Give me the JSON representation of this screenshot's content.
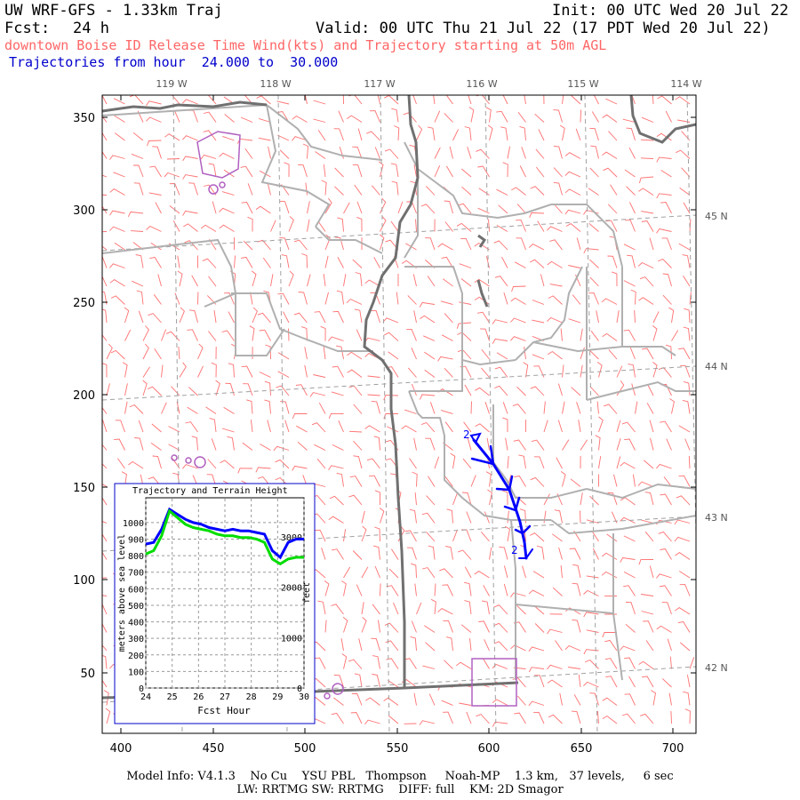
{
  "header": {
    "title": "UW WRF-GFS - 1.33km Traj",
    "init": "Init: 00 UTC Wed 20 Jul 22",
    "fcst_label": "Fcst:",
    "fcst_value": "24 h",
    "valid": "Valid: 00 UTC Thu 21 Jul 22 (17 PDT Wed 20 Jul 22)",
    "subtitle": "downtown Boise ID Release Time Wind(kts) and Trajectory starting at 50m AGL",
    "traj_hours": "Trajectories from hour  24.000 to  30.000"
  },
  "colors": {
    "title": "#000000",
    "subtitle": "#ff6666",
    "traj_hours": "#0000cc",
    "wind_barb": "#ff7070",
    "trajectory": "#0000ff",
    "terrain": "#00dd00",
    "county_border": "#b0b0b0",
    "state_border": "#707070",
    "grid": "#a0a0a0",
    "urban": "#b060c0"
  },
  "map": {
    "x_ticks": [
      "400",
      "450",
      "500",
      "550",
      "600",
      "650",
      "700"
    ],
    "y_ticks": [
      "50",
      "100",
      "150",
      "200",
      "250",
      "300",
      "350"
    ],
    "lon_labels": [
      "119 W",
      "118 W",
      "117 W",
      "116 W",
      "115 W",
      "114 W"
    ],
    "lat_labels": [
      "45 N",
      "44 N",
      "43 N",
      "42 N"
    ],
    "trajectory_markers": [
      "2",
      "2"
    ]
  },
  "inset": {
    "title": "Trajectory and Terrain Height",
    "y_left_label": "meters above sea level",
    "y_right_label": "feet",
    "x_label": "Fcst Hour",
    "y_left_ticks": [
      "0",
      "100",
      "200",
      "300",
      "400",
      "500",
      "600",
      "700",
      "800",
      "900",
      "1000"
    ],
    "y_right_ticks": [
      "0",
      "1000",
      "2000",
      "3000"
    ],
    "x_ticks": [
      "24",
      "25",
      "26",
      "27",
      "28",
      "29",
      "30"
    ],
    "chart_data": {
      "type": "line",
      "x": [
        24,
        24.3,
        24.6,
        24.9,
        25.2,
        25.5,
        25.8,
        26.1,
        26.4,
        26.7,
        27.0,
        27.3,
        27.6,
        27.9,
        28.2,
        28.5,
        28.8,
        29.1,
        29.4,
        29.7,
        30.0
      ],
      "series": [
        {
          "values": [
            870,
            880,
            960,
            1080,
            1050,
            1020,
            1000,
            990,
            970,
            960,
            950,
            960,
            950,
            950,
            940,
            930,
            830,
            790,
            880,
            900,
            900
          ]
        },
        {
          "values": [
            810,
            830,
            920,
            1070,
            1030,
            990,
            970,
            960,
            950,
            930,
            920,
            920,
            910,
            910,
            900,
            880,
            780,
            750,
            780,
            790,
            790
          ]
        }
      ],
      "xlim": [
        24,
        30
      ],
      "ylim": [
        0,
        1150
      ],
      "xlabel": "Fcst Hour",
      "ylabel": "meters above sea level",
      "grid": true
    }
  },
  "footer": {
    "line1": "Model Info: V4.1.3    No Cu    YSU PBL   Thompson     Noah-MP    1.3 km,   37 levels,     6 sec",
    "line2": "LW: RRTMG SW: RRTMG    DIFF: full    KM: 2D Smagor"
  }
}
